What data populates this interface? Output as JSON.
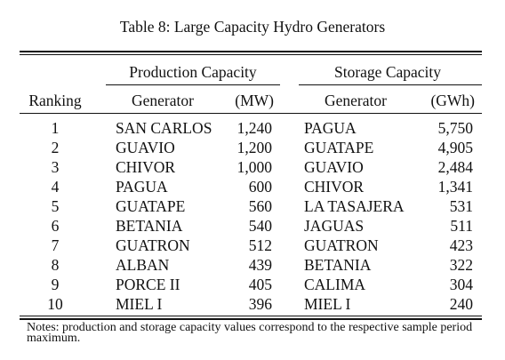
{
  "caption": "Table 8: Large Capacity Hydro Generators",
  "group_headers": {
    "production": "Production Capacity",
    "storage": "Storage Capacity"
  },
  "column_headers": {
    "ranking": "Ranking",
    "prod_generator": "Generator",
    "prod_unit": "(MW)",
    "stor_generator": "Generator",
    "stor_unit": "(GWh)"
  },
  "rows": [
    {
      "rank": "1",
      "prod_gen": "SAN CARLOS",
      "prod_mw": "1,240",
      "stor_gen": "PAGUA",
      "stor_gwh": "5,750"
    },
    {
      "rank": "2",
      "prod_gen": "GUAVIO",
      "prod_mw": "1,200",
      "stor_gen": "GUATAPE",
      "stor_gwh": "4,905"
    },
    {
      "rank": "3",
      "prod_gen": "CHIVOR",
      "prod_mw": "1,000",
      "stor_gen": "GUAVIO",
      "stor_gwh": "2,484"
    },
    {
      "rank": "4",
      "prod_gen": "PAGUA",
      "prod_mw": "600",
      "stor_gen": "CHIVOR",
      "stor_gwh": "1,341"
    },
    {
      "rank": "5",
      "prod_gen": "GUATAPE",
      "prod_mw": "560",
      "stor_gen": "LA TASAJERA",
      "stor_gwh": "531"
    },
    {
      "rank": "6",
      "prod_gen": "BETANIA",
      "prod_mw": "540",
      "stor_gen": "JAGUAS",
      "stor_gwh": "511"
    },
    {
      "rank": "7",
      "prod_gen": "GUATRON",
      "prod_mw": "512",
      "stor_gen": "GUATRON",
      "stor_gwh": "423"
    },
    {
      "rank": "8",
      "prod_gen": "ALBAN",
      "prod_mw": "439",
      "stor_gen": "BETANIA",
      "stor_gwh": "322"
    },
    {
      "rank": "9",
      "prod_gen": "PORCE II",
      "prod_mw": "405",
      "stor_gen": "CALIMA",
      "stor_gwh": "304"
    },
    {
      "rank": "10",
      "prod_gen": "MIEL I",
      "prod_mw": "396",
      "stor_gen": "MIEL I",
      "stor_gwh": "240"
    }
  ],
  "notes": "Notes: production and storage capacity values correspond to the respective sample period maximum."
}
